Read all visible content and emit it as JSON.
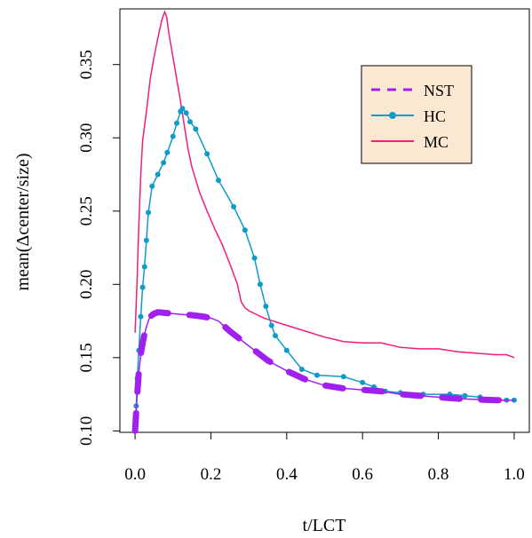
{
  "chart_data": {
    "type": "line",
    "title": "",
    "xlabel": "t/LCT",
    "ylabel": "mean(Δcenter/size)",
    "xlim": [
      -0.04,
      1.04
    ],
    "ylim": [
      0.099,
      0.388
    ],
    "x_ticks": [
      "0.0",
      "0.2",
      "0.4",
      "0.6",
      "0.8",
      "1.0"
    ],
    "y_ticks": [
      "0.10",
      "0.15",
      "0.20",
      "0.25",
      "0.30",
      "0.35"
    ],
    "legend_position": "top-right",
    "legend": [
      "NST",
      "HC",
      "MC"
    ],
    "series": [
      {
        "name": "NST",
        "color": "#A020F0",
        "style": "dashed-thick-over-line",
        "points": [
          [
            0.0,
            0.1
          ],
          [
            0.005,
            0.122
          ],
          [
            0.01,
            0.14
          ],
          [
            0.015,
            0.152
          ],
          [
            0.02,
            0.16
          ],
          [
            0.025,
            0.166
          ],
          [
            0.03,
            0.171
          ],
          [
            0.035,
            0.175
          ],
          [
            0.04,
            0.178
          ],
          [
            0.05,
            0.18
          ],
          [
            0.06,
            0.181
          ],
          [
            0.08,
            0.1805
          ],
          [
            0.1,
            0.18
          ],
          [
            0.12,
            0.1795
          ],
          [
            0.15,
            0.179
          ],
          [
            0.18,
            0.178
          ],
          [
            0.2,
            0.177
          ],
          [
            0.22,
            0.175
          ],
          [
            0.25,
            0.168
          ],
          [
            0.3,
            0.158
          ],
          [
            0.35,
            0.148
          ],
          [
            0.4,
            0.141
          ],
          [
            0.45,
            0.135
          ],
          [
            0.5,
            0.131
          ],
          [
            0.55,
            0.129
          ],
          [
            0.6,
            0.128
          ],
          [
            0.65,
            0.127
          ],
          [
            0.7,
            0.125
          ],
          [
            0.75,
            0.124
          ],
          [
            0.8,
            0.123
          ],
          [
            0.85,
            0.122
          ],
          [
            0.9,
            0.1215
          ],
          [
            0.95,
            0.121
          ],
          [
            1.0,
            0.121
          ]
        ]
      },
      {
        "name": "HC",
        "color": "#0F9BC9",
        "style": "line-with-points",
        "points": [
          [
            0.0,
            0.1
          ],
          [
            0.003,
            0.117
          ],
          [
            0.006,
            0.136
          ],
          [
            0.01,
            0.155
          ],
          [
            0.015,
            0.178
          ],
          [
            0.02,
            0.198
          ],
          [
            0.025,
            0.212
          ],
          [
            0.03,
            0.23
          ],
          [
            0.035,
            0.249
          ],
          [
            0.045,
            0.267
          ],
          [
            0.06,
            0.275
          ],
          [
            0.075,
            0.283
          ],
          [
            0.085,
            0.29
          ],
          [
            0.1,
            0.301
          ],
          [
            0.11,
            0.31
          ],
          [
            0.12,
            0.318
          ],
          [
            0.125,
            0.32
          ],
          [
            0.135,
            0.317
          ],
          [
            0.145,
            0.311
          ],
          [
            0.16,
            0.306
          ],
          [
            0.19,
            0.289
          ],
          [
            0.22,
            0.271
          ],
          [
            0.26,
            0.253
          ],
          [
            0.29,
            0.237
          ],
          [
            0.315,
            0.218
          ],
          [
            0.33,
            0.2
          ],
          [
            0.345,
            0.185
          ],
          [
            0.36,
            0.172
          ],
          [
            0.37,
            0.165
          ],
          [
            0.4,
            0.155
          ],
          [
            0.44,
            0.142
          ],
          [
            0.48,
            0.138
          ],
          [
            0.55,
            0.137
          ],
          [
            0.6,
            0.133
          ],
          [
            0.63,
            0.13
          ],
          [
            0.66,
            0.127
          ],
          [
            0.7,
            0.126
          ],
          [
            0.76,
            0.125
          ],
          [
            0.83,
            0.125
          ],
          [
            0.87,
            0.124
          ],
          [
            0.91,
            0.123
          ],
          [
            0.95,
            0.121
          ],
          [
            0.98,
            0.121
          ],
          [
            1.0,
            0.121
          ]
        ]
      },
      {
        "name": "MC",
        "color": "#F01E7D",
        "style": "line",
        "points": [
          [
            0.0,
            0.167
          ],
          [
            0.005,
            0.2
          ],
          [
            0.01,
            0.24
          ],
          [
            0.015,
            0.275
          ],
          [
            0.02,
            0.298
          ],
          [
            0.03,
            0.318
          ],
          [
            0.04,
            0.34
          ],
          [
            0.05,
            0.355
          ],
          [
            0.06,
            0.368
          ],
          [
            0.07,
            0.38
          ],
          [
            0.078,
            0.386
          ],
          [
            0.083,
            0.383
          ],
          [
            0.09,
            0.37
          ],
          [
            0.1,
            0.355
          ],
          [
            0.11,
            0.34
          ],
          [
            0.12,
            0.325
          ],
          [
            0.13,
            0.308
          ],
          [
            0.14,
            0.292
          ],
          [
            0.15,
            0.28
          ],
          [
            0.17,
            0.263
          ],
          [
            0.19,
            0.25
          ],
          [
            0.21,
            0.238
          ],
          [
            0.23,
            0.227
          ],
          [
            0.25,
            0.214
          ],
          [
            0.27,
            0.2
          ],
          [
            0.28,
            0.188
          ],
          [
            0.29,
            0.184
          ],
          [
            0.3,
            0.182
          ],
          [
            0.34,
            0.177
          ],
          [
            0.4,
            0.172
          ],
          [
            0.45,
            0.168
          ],
          [
            0.5,
            0.164
          ],
          [
            0.55,
            0.161
          ],
          [
            0.6,
            0.16
          ],
          [
            0.65,
            0.16
          ],
          [
            0.7,
            0.157
          ],
          [
            0.75,
            0.156
          ],
          [
            0.8,
            0.156
          ],
          [
            0.85,
            0.154
          ],
          [
            0.9,
            0.153
          ],
          [
            0.95,
            0.152
          ],
          [
            0.98,
            0.152
          ],
          [
            1.0,
            0.15
          ]
        ]
      }
    ]
  }
}
